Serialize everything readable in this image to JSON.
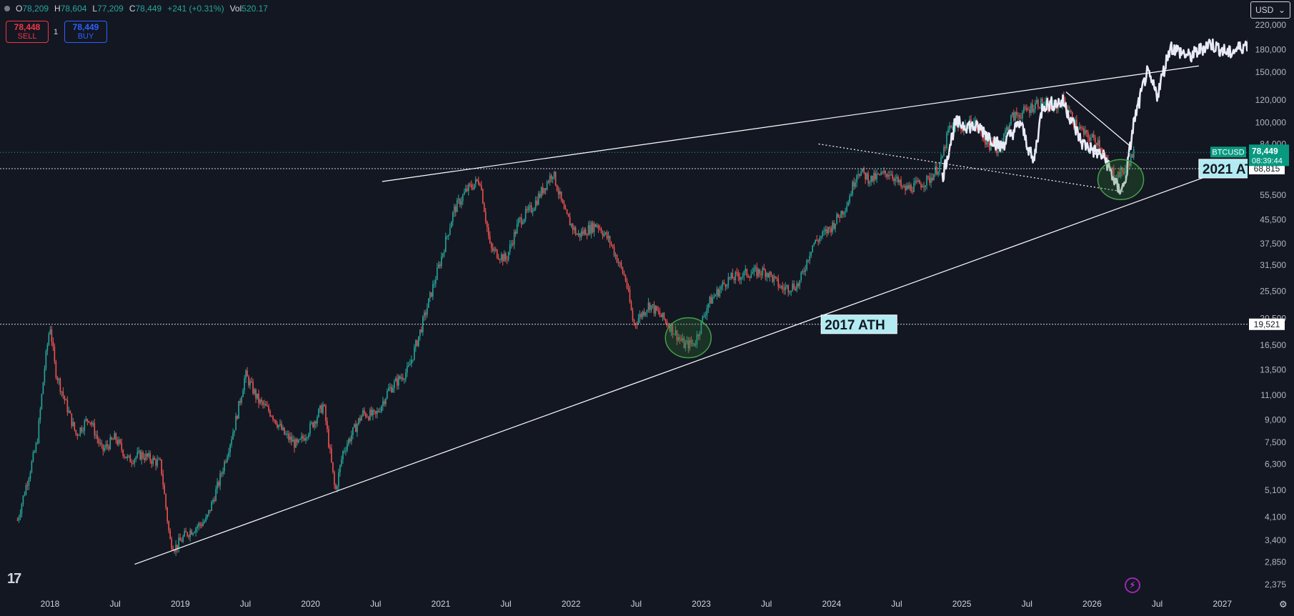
{
  "header": {
    "ohlc": [
      {
        "key": "O",
        "value": "78,209"
      },
      {
        "key": "H",
        "value": "78,604"
      },
      {
        "key": "L",
        "value": "77,209"
      },
      {
        "key": "C",
        "value": "78,449"
      }
    ],
    "change": "+241 (+0.31%)",
    "vol_label": "Vol",
    "vol_value": "520.17"
  },
  "trade": {
    "sell_price": "78,448",
    "sell_label": "SELL",
    "qty": "1",
    "buy_price": "78,449",
    "buy_label": "BUY"
  },
  "currency": {
    "label": "USD",
    "chevron": "⌄"
  },
  "logo": {
    "text": "17"
  },
  "colors": {
    "up": "#26a69a",
    "down": "#ef5350",
    "projection": "#e8eaf6",
    "line": "#ffffff",
    "circle": "#2e7d32",
    "label_bg": "#b2ebf2"
  },
  "chart_data": {
    "type": "candlestick",
    "symbol": "BTCUSD",
    "y_scale": "log",
    "ylim": [
      2200,
      250000
    ],
    "y_ticks": [
      2375,
      2850,
      3400,
      4100,
      5100,
      6300,
      7500,
      9000,
      11000,
      13500,
      16500,
      20500,
      25500,
      31500,
      37500,
      45500,
      55500,
      84000,
      100000,
      120000,
      150000,
      180000,
      220000
    ],
    "y_tick_labels": [
      "2,375",
      "2,850",
      "3,400",
      "4,100",
      "5,100",
      "6,300",
      "7,500",
      "9,000",
      "11,000",
      "13,500",
      "16,500",
      "20,500",
      "25,500",
      "31,500",
      "37,500",
      "45,500",
      "55,500",
      "84,000",
      "100,000",
      "120,000",
      "150,000",
      "180,000",
      "220,000"
    ],
    "xlim": [
      2017.75,
      2027.6
    ],
    "x_ticks": [
      {
        "x": 2018.0,
        "label": "2018"
      },
      {
        "x": 2018.5,
        "label": "Jul"
      },
      {
        "x": 2019.0,
        "label": "2019"
      },
      {
        "x": 2019.5,
        "label": "Jul"
      },
      {
        "x": 2020.0,
        "label": "2020"
      },
      {
        "x": 2020.5,
        "label": "Jul"
      },
      {
        "x": 2021.0,
        "label": "2021"
      },
      {
        "x": 2021.5,
        "label": "Jul"
      },
      {
        "x": 2022.0,
        "label": "2022"
      },
      {
        "x": 2022.5,
        "label": "Jul"
      },
      {
        "x": 2023.0,
        "label": "2023"
      },
      {
        "x": 2023.5,
        "label": "Jul"
      },
      {
        "x": 2024.0,
        "label": "2024"
      },
      {
        "x": 2024.5,
        "label": "Jul"
      },
      {
        "x": 2025.0,
        "label": "2025"
      },
      {
        "x": 2025.5,
        "label": "Jul"
      },
      {
        "x": 2026.0,
        "label": "2026"
      },
      {
        "x": 2026.5,
        "label": "Jul"
      },
      {
        "x": 2027.0,
        "label": "2027"
      }
    ],
    "anchors": [
      [
        2017.75,
        4000
      ],
      [
        2017.83,
        5600
      ],
      [
        2017.9,
        7500
      ],
      [
        2017.96,
        14000
      ],
      [
        2018.0,
        19500
      ],
      [
        2018.04,
        13500
      ],
      [
        2018.1,
        11000
      ],
      [
        2018.2,
        8000
      ],
      [
        2018.3,
        9200
      ],
      [
        2018.4,
        7000
      ],
      [
        2018.5,
        7800
      ],
      [
        2018.6,
        6500
      ],
      [
        2018.7,
        6800
      ],
      [
        2018.85,
        6300
      ],
      [
        2018.92,
        3400
      ],
      [
        2018.96,
        3200
      ],
      [
        2019.05,
        3600
      ],
      [
        2019.2,
        4000
      ],
      [
        2019.3,
        5500
      ],
      [
        2019.42,
        8700
      ],
      [
        2019.5,
        13000
      ],
      [
        2019.6,
        10500
      ],
      [
        2019.7,
        9500
      ],
      [
        2019.8,
        8000
      ],
      [
        2019.9,
        7300
      ],
      [
        2020.0,
        8500
      ],
      [
        2020.1,
        10200
      ],
      [
        2020.19,
        5000
      ],
      [
        2020.25,
        7000
      ],
      [
        2020.4,
        9500
      ],
      [
        2020.5,
        9300
      ],
      [
        2020.6,
        11500
      ],
      [
        2020.75,
        13500
      ],
      [
        2020.85,
        19000
      ],
      [
        2021.0,
        33000
      ],
      [
        2021.1,
        49000
      ],
      [
        2021.2,
        58000
      ],
      [
        2021.3,
        63000
      ],
      [
        2021.38,
        36000
      ],
      [
        2021.5,
        33000
      ],
      [
        2021.6,
        45000
      ],
      [
        2021.7,
        50000
      ],
      [
        2021.86,
        67000
      ],
      [
        2021.95,
        48000
      ],
      [
        2022.05,
        40000
      ],
      [
        2022.2,
        44000
      ],
      [
        2022.3,
        38000
      ],
      [
        2022.42,
        28000
      ],
      [
        2022.48,
        19500
      ],
      [
        2022.6,
        23000
      ],
      [
        2022.75,
        19500
      ],
      [
        2022.87,
        16500
      ],
      [
        2022.95,
        16800
      ],
      [
        2023.05,
        23000
      ],
      [
        2023.2,
        28000
      ],
      [
        2023.35,
        29500
      ],
      [
        2023.5,
        30000
      ],
      [
        2023.62,
        26000
      ],
      [
        2023.75,
        27000
      ],
      [
        2023.85,
        37000
      ],
      [
        2024.0,
        43000
      ],
      [
        2024.12,
        52000
      ],
      [
        2024.2,
        68000
      ],
      [
        2024.3,
        63000
      ],
      [
        2024.45,
        67000
      ],
      [
        2024.55,
        58000
      ],
      [
        2024.65,
        60000
      ],
      [
        2024.75,
        63000
      ],
      [
        2024.84,
        72000
      ],
      [
        2024.9,
        95000
      ],
      [
        2025.0,
        96000
      ],
      [
        2025.1,
        100000
      ],
      [
        2025.2,
        84000
      ],
      [
        2025.28,
        80000
      ],
      [
        2025.38,
        104000
      ],
      [
        2025.5,
        110000
      ],
      [
        2025.58,
        118000
      ],
      [
        2025.7,
        112000
      ],
      [
        2025.78,
        120000
      ],
      [
        2025.86,
        100000
      ],
      [
        2025.95,
        90000
      ],
      [
        2026.05,
        86000
      ],
      [
        2026.12,
        70000
      ],
      [
        2026.18,
        65000
      ],
      [
        2026.25,
        68000
      ],
      [
        2026.33,
        80000
      ]
    ],
    "projection_anchors": [
      [
        2024.85,
        64000
      ],
      [
        2024.95,
        100000
      ],
      [
        2025.15,
        95000
      ],
      [
        2025.3,
        82000
      ],
      [
        2025.45,
        100000
      ],
      [
        2025.55,
        72000
      ],
      [
        2025.62,
        115000
      ],
      [
        2025.78,
        118000
      ],
      [
        2025.92,
        85000
      ],
      [
        2026.1,
        75000
      ],
      [
        2026.2,
        58000
      ],
      [
        2026.25,
        60000
      ],
      [
        2026.32,
        100000
      ],
      [
        2026.42,
        150000
      ],
      [
        2026.5,
        125000
      ],
      [
        2026.6,
        185000
      ],
      [
        2026.75,
        170000
      ],
      [
        2026.9,
        190000
      ],
      [
        2027.05,
        175000
      ],
      [
        2027.25,
        195000
      ],
      [
        2027.45,
        190000
      ],
      [
        2027.55,
        235000
      ],
      [
        2027.6,
        250000
      ]
    ],
    "trendlines": [
      {
        "from": [
          2018.65,
          2800
        ],
        "to": [
          2027.6,
          85000
        ],
        "style": "solid"
      },
      {
        "from": [
          2020.55,
          62000
        ],
        "to": [
          2026.82,
          158000
        ],
        "style": "solid"
      },
      {
        "from": [
          2023.9,
          84000
        ],
        "to": [
          2026.25,
          57000
        ],
        "style": "dotted"
      },
      {
        "from": [
          2025.8,
          128000
        ],
        "to": [
          2026.3,
          82000
        ],
        "style": "solid"
      }
    ],
    "horizontal_lines": [
      {
        "y": 19521,
        "label": "19,521",
        "style": "dotted"
      },
      {
        "y": 68815,
        "label": "68,815",
        "style": "dotted"
      }
    ],
    "circles": [
      {
        "x": 2022.9,
        "y": 17500
      },
      {
        "x": 2026.22,
        "y": 63000
      }
    ],
    "annotations": [
      {
        "text": "2017 ATH",
        "x": 2023.92,
        "y": 19521
      },
      {
        "text": "2021 AT",
        "x": 2026.82,
        "y": 68815
      }
    ],
    "last_price": {
      "symbol": "BTCUSD",
      "price": "78,449",
      "countdown": "08:39:44",
      "y": 78449
    }
  }
}
